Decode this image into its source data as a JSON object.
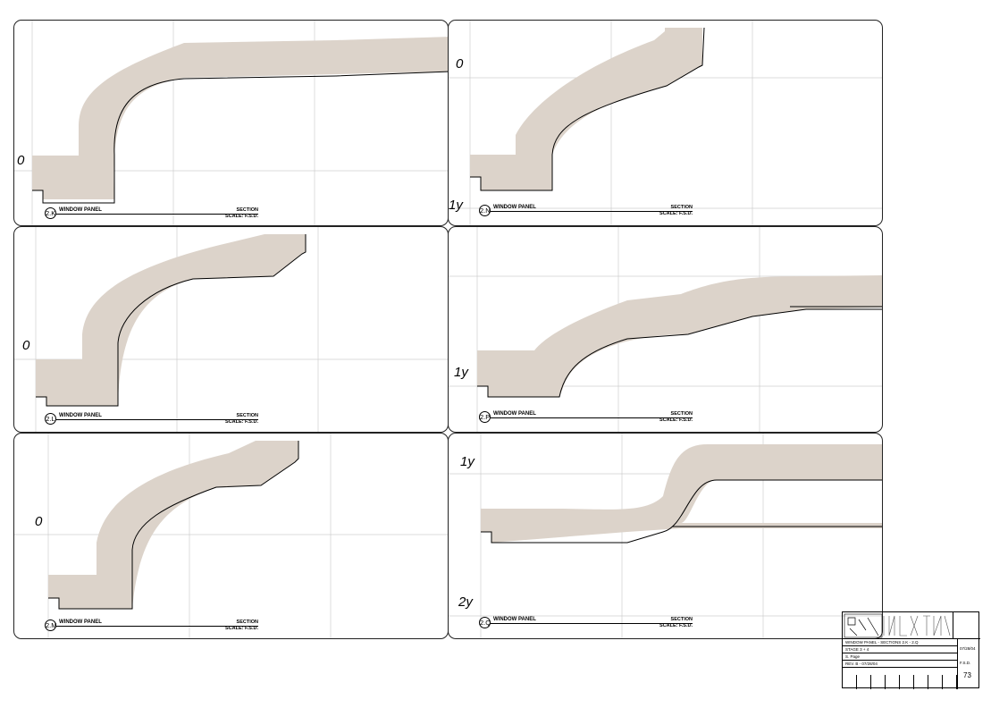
{
  "sheet": {
    "panels": [
      {
        "id": "k",
        "detail_id": "2.K",
        "detail_name": "WINDOW PANEL",
        "view_type": "SECTION",
        "scale": "SCALE: F.S.D.",
        "level_labels": [
          "0"
        ]
      },
      {
        "id": "n",
        "detail_id": "2.N",
        "detail_name": "WINDOW PANEL",
        "view_type": "SECTION",
        "scale": "SCALE: F.S.D.",
        "level_labels": [
          "0",
          "1y"
        ]
      },
      {
        "id": "l",
        "detail_id": "2.L",
        "detail_name": "WINDOW PANEL",
        "view_type": "SECTION",
        "scale": "SCALE: F.S.D.",
        "level_labels": [
          "0"
        ]
      },
      {
        "id": "p",
        "detail_id": "2.P",
        "detail_name": "WINDOW PANEL",
        "view_type": "SECTION",
        "scale": "SCALE: F.S.D.",
        "level_labels": [
          "1y"
        ]
      },
      {
        "id": "m",
        "detail_id": "2.M",
        "detail_name": "WINDOW PANEL",
        "view_type": "SECTION",
        "scale": "SCALE: F.S.D.",
        "level_labels": [
          "0"
        ]
      },
      {
        "id": "q",
        "detail_id": "2.Q",
        "detail_name": "WINDOW PANEL",
        "view_type": "SECTION",
        "scale": "SCALE: F.S.D.",
        "level_labels": [
          "1y",
          "2y"
        ]
      }
    ],
    "colors": {
      "section_fill": "#dcd3ca",
      "border": "#222222",
      "grid": "#cfcfcf"
    }
  },
  "title_block": {
    "drawing_title": "WINDOW PANEL - SECTIONS 2.K - 2.Q",
    "phase": "STAGE 3 + 4",
    "drawn_by": "S. Page",
    "revision": "REV. B - 07/28/04",
    "date": "07/28/04",
    "scale": "F.S.D.",
    "sheet_number": "73"
  }
}
